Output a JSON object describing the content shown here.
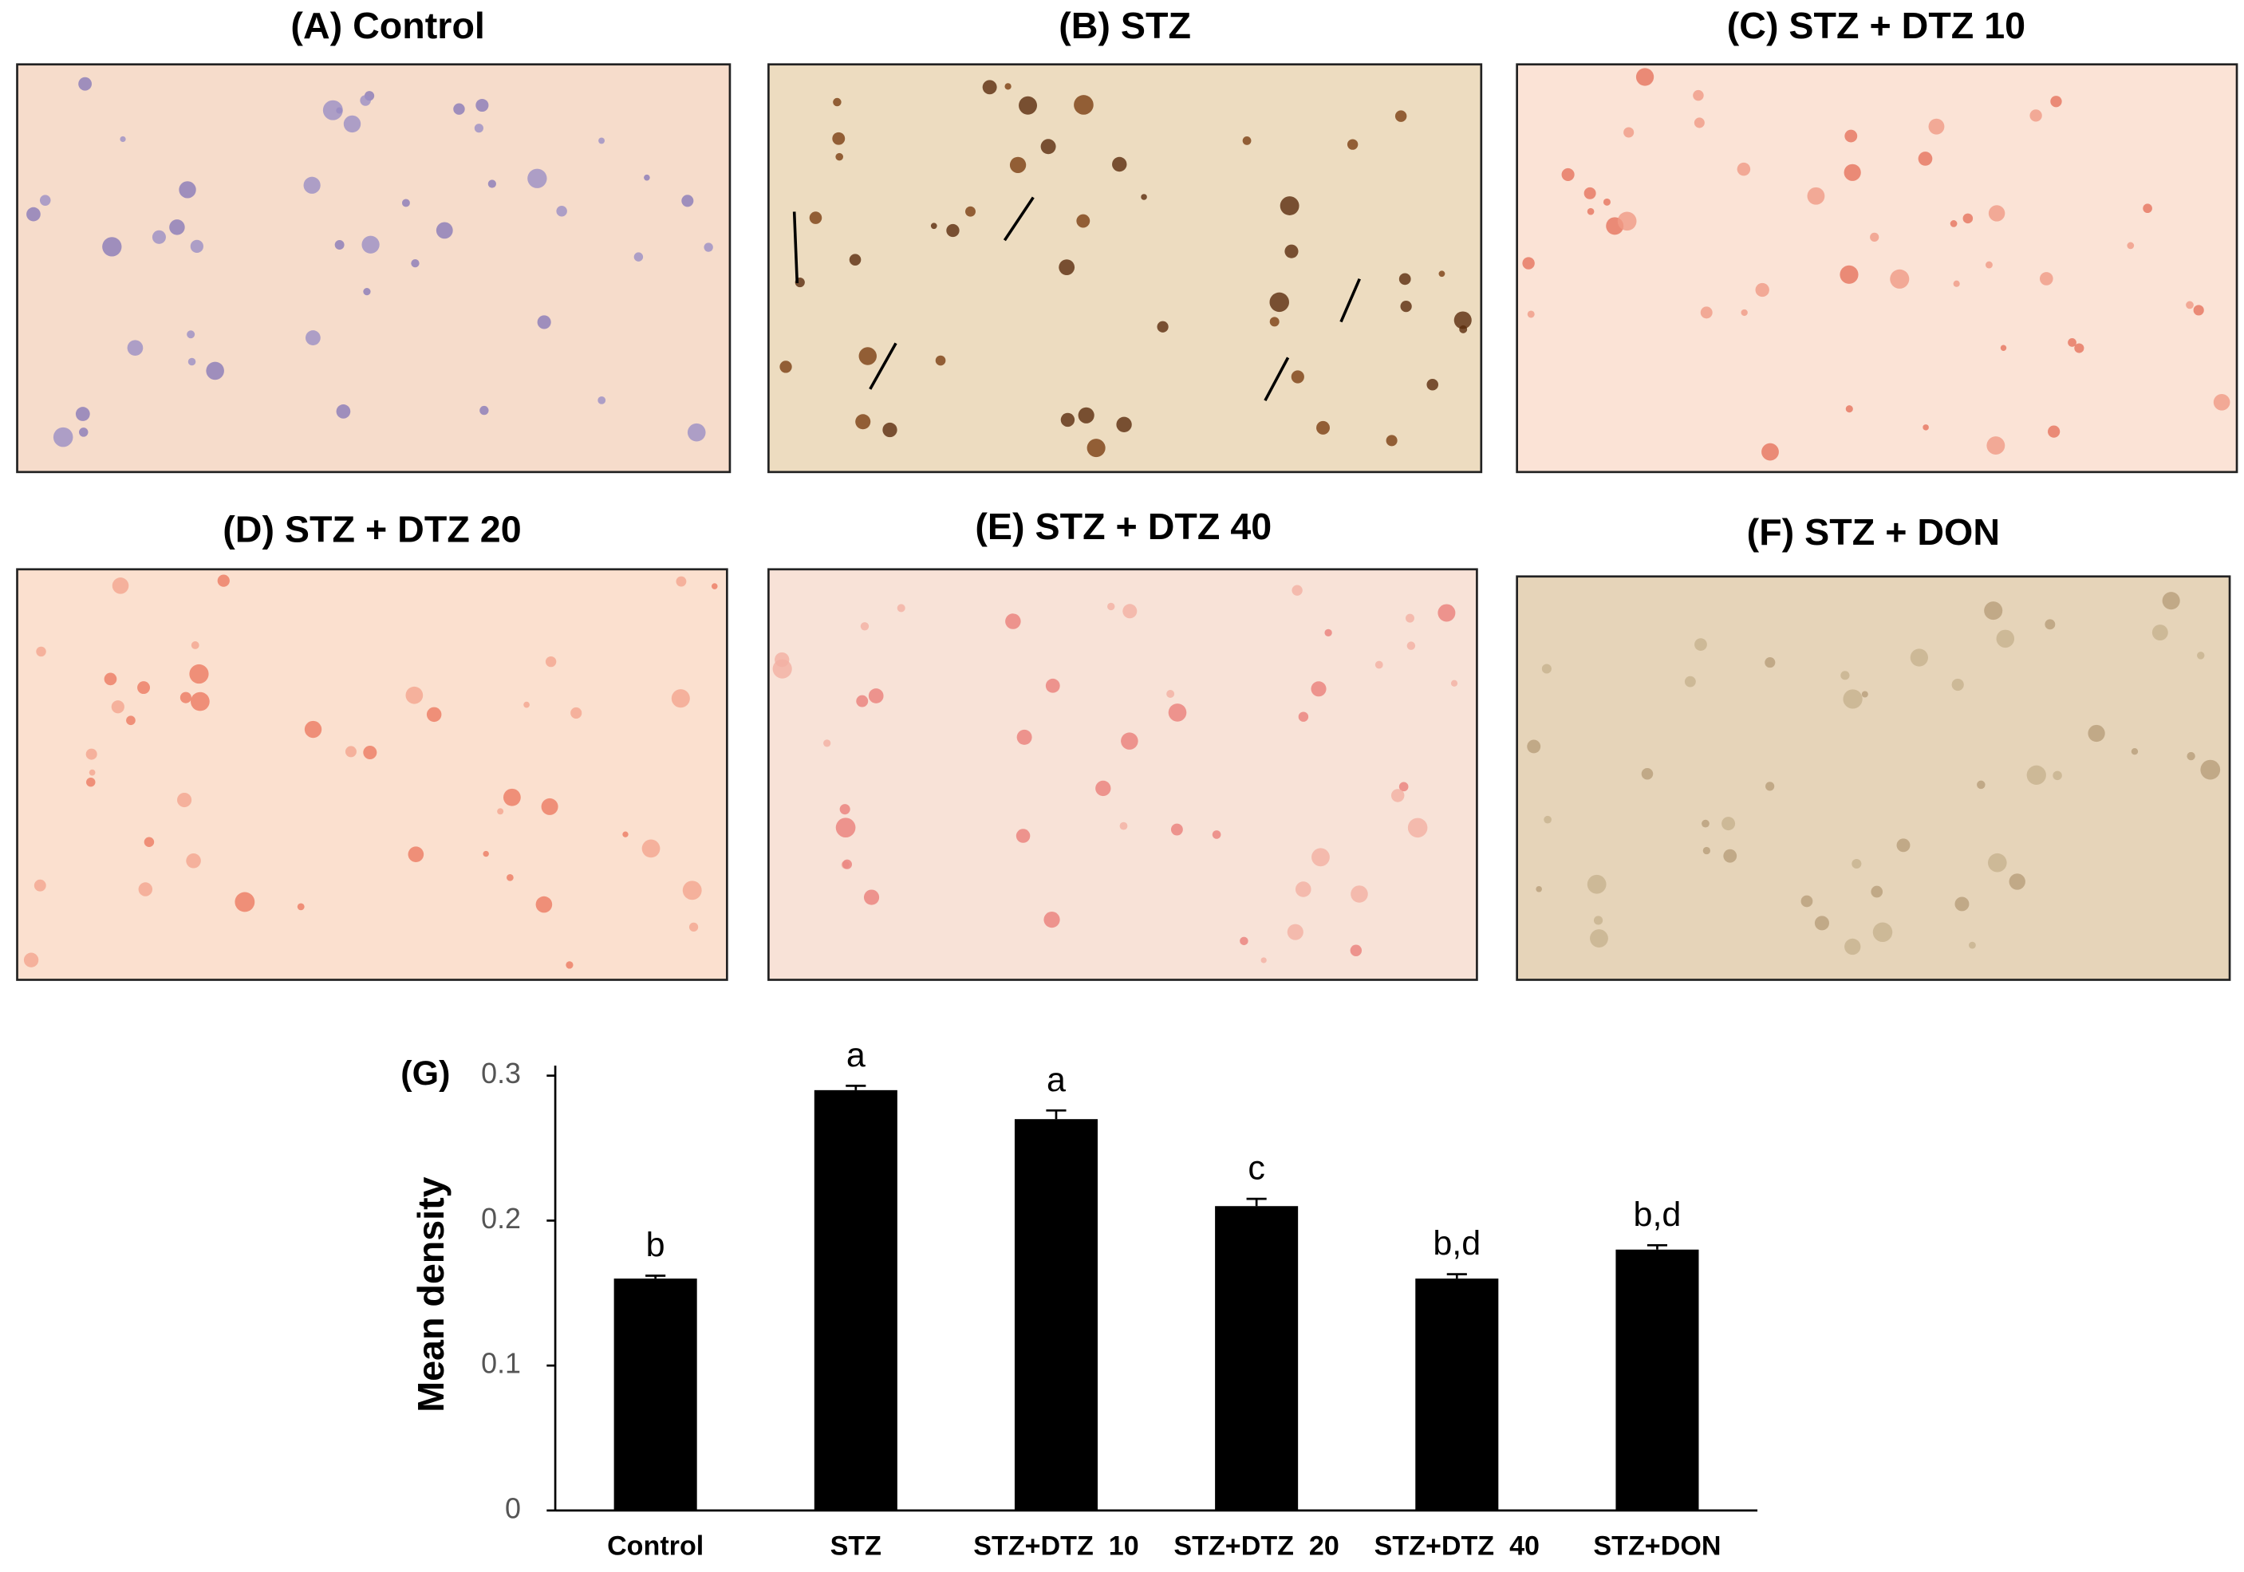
{
  "panels": [
    {
      "label": "(A) Control"
    },
    {
      "label": "(B) STZ"
    },
    {
      "label": "(C) STZ + DTZ 10"
    },
    {
      "label": "(D) STZ + DTZ 20"
    },
    {
      "label": "(E) STZ + DTZ 40"
    },
    {
      "label": "(F) STZ + DON"
    }
  ],
  "chart_data": {
    "type": "bar",
    "panel_label": "(G)",
    "y_label": "Mean density",
    "categories": [
      "Control",
      "STZ",
      "STZ+DTZ  10",
      "STZ+DTZ  20",
      "STZ+DTZ  40",
      "STZ+DON"
    ],
    "values": [
      0.16,
      0.29,
      0.27,
      0.21,
      0.16,
      0.18
    ],
    "errors": [
      0.002,
      0.003,
      0.006,
      0.005,
      0.003,
      0.003
    ],
    "annotations": [
      "b",
      "a",
      "a",
      "c",
      "b,d",
      "b,d"
    ],
    "color": "#000000",
    "ylim": [
      0,
      0.3
    ],
    "yticks": [
      0,
      0.1,
      0.2,
      0.3
    ],
    "grid": false
  }
}
